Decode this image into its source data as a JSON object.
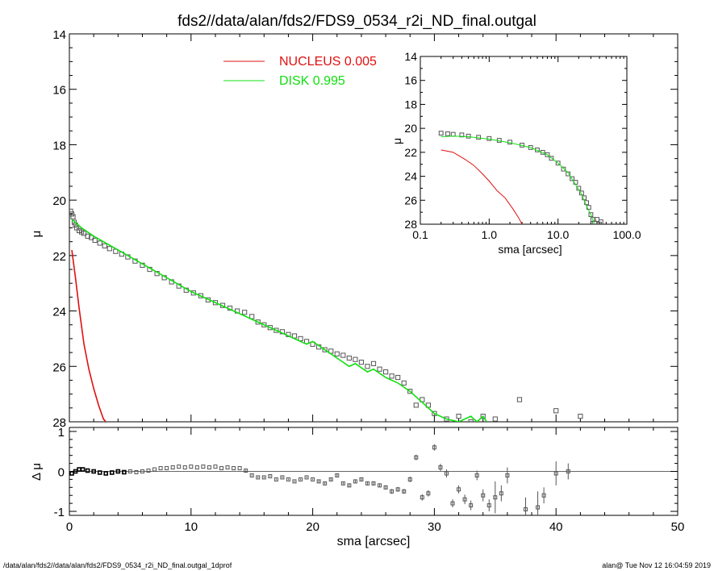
{
  "title": "fds2//data/alan/fds2/FDS9_0534_r2i_ND_final.outgal",
  "footer_left": "/data/alan/fds2//data/alan/fds2/FDS9_0534_r2i_ND_final.outgal_1dprof",
  "footer_right": "alan@  Tue Nov 12 16:04:59 2019",
  "colors": {
    "nucleus": "#e01010",
    "disk": "#10e010",
    "data": "#555555",
    "axes": "#000000"
  },
  "legend": [
    {
      "label": "NUCLEUS",
      "value": "0.005",
      "color": "#e01010"
    },
    {
      "label": "DISK",
      "value": "0.995",
      "color": "#10e010"
    }
  ],
  "chart_data": [
    {
      "type": "scatter",
      "panel": "main",
      "xlabel": "sma [arcsec]",
      "ylabel": "μ",
      "xlim": [
        0,
        50
      ],
      "ylim": [
        28,
        14
      ],
      "y_inverted": true,
      "xticks": [
        0,
        10,
        20,
        30,
        40,
        50
      ],
      "yticks": [
        14,
        16,
        18,
        20,
        22,
        24,
        26,
        28
      ],
      "series": [
        {
          "name": "NUCLEUS",
          "style": "line",
          "x": [
            0.2,
            0.5,
            0.8,
            1.2,
            1.6,
            2.0,
            2.4,
            2.8,
            3.0
          ],
          "y": [
            21.8,
            22.8,
            23.9,
            25.2,
            26.1,
            26.8,
            27.4,
            27.9,
            28.0
          ]
        },
        {
          "name": "DISK",
          "style": "line",
          "x": [
            0.2,
            1,
            2,
            4,
            6,
            8,
            10,
            12,
            14,
            16,
            18,
            19.5,
            20,
            21,
            22,
            23,
            23.5,
            24.5,
            25,
            26,
            27,
            28,
            29,
            30,
            31,
            32,
            33,
            33.5,
            34,
            34.3
          ],
          "y": [
            20.7,
            21.0,
            21.3,
            21.8,
            22.3,
            22.8,
            23.3,
            23.7,
            24.1,
            24.5,
            24.9,
            25.2,
            25.1,
            25.4,
            25.7,
            26.0,
            25.9,
            26.2,
            26.1,
            26.4,
            26.6,
            26.9,
            27.3,
            27.7,
            27.9,
            28.0,
            27.8,
            28.0,
            27.8,
            28.0
          ]
        },
        {
          "name": "",
          "style": "points",
          "x": [
            0.1,
            0.2,
            0.3,
            0.4,
            0.5,
            0.6,
            0.8,
            1.0,
            1.2,
            1.5,
            1.8,
            2.1,
            2.5,
            2.9,
            3.3,
            3.8,
            4.3,
            4.8,
            5.4,
            6.0,
            6.6,
            7.2,
            7.8,
            8.4,
            9.0,
            9.6,
            10.2,
            10.8,
            11.4,
            12.0,
            12.6,
            13.2,
            13.8,
            14.4,
            15.0,
            15.5,
            16.0,
            16.5,
            17.0,
            17.5,
            18.0,
            18.5,
            19.0,
            19.5,
            20.0,
            20.5,
            21.0,
            21.5,
            22.0,
            22.5,
            23.0,
            23.5,
            24.0,
            24.5,
            25.0,
            25.5,
            26.0,
            26.5,
            27.0,
            27.5,
            28.0,
            28.5,
            29.0,
            29.5,
            30.0,
            31.0,
            32.0,
            33.0,
            34.0,
            35.0,
            37.0,
            40.0,
            42.0
          ],
          "y": [
            20.4,
            20.5,
            20.6,
            20.8,
            20.9,
            21.0,
            21.1,
            21.15,
            21.2,
            21.3,
            21.35,
            21.45,
            21.55,
            21.65,
            21.75,
            21.85,
            21.95,
            22.05,
            22.2,
            22.35,
            22.5,
            22.65,
            22.8,
            22.95,
            23.1,
            23.25,
            23.35,
            23.45,
            23.6,
            23.7,
            23.8,
            23.9,
            24.0,
            24.05,
            24.2,
            24.4,
            24.5,
            24.6,
            24.7,
            24.75,
            24.85,
            24.9,
            25.0,
            25.1,
            25.2,
            25.3,
            25.4,
            25.45,
            25.55,
            25.6,
            25.7,
            25.75,
            25.85,
            26.0,
            25.9,
            26.1,
            26.2,
            26.35,
            26.4,
            26.6,
            26.9,
            27.4,
            27.2,
            27.4,
            27.7,
            27.9,
            27.8,
            28.0,
            27.8,
            27.9,
            27.2,
            27.6,
            27.8
          ]
        }
      ]
    },
    {
      "type": "scatter",
      "panel": "inset",
      "xlabel": "sma [arcsec]",
      "ylabel": "μ",
      "x_scale": "log",
      "xlim": [
        0.1,
        100.0
      ],
      "ylim": [
        28,
        14
      ],
      "y_inverted": true,
      "xtick_labels": [
        "0.1",
        "1.0",
        "10.0",
        "100.0"
      ],
      "yticks": [
        14,
        16,
        18,
        20,
        22,
        24,
        26,
        28
      ],
      "series": [
        {
          "name": "NUCLEUS",
          "style": "line",
          "x": [
            0.2,
            0.3,
            0.45,
            0.6,
            0.8,
            1.0,
            1.3,
            1.7,
            2.2,
            2.7,
            3.0
          ],
          "y": [
            21.8,
            22.0,
            22.6,
            23.1,
            23.8,
            24.4,
            25.2,
            25.8,
            26.7,
            27.5,
            28.0
          ]
        },
        {
          "name": "DISK",
          "style": "line",
          "x": [
            0.2,
            0.3,
            0.5,
            1.0,
            2.0,
            4.0,
            7.0,
            10.0,
            14.0,
            18.0,
            22.0,
            26.0,
            30.0,
            34.0
          ],
          "y": [
            20.7,
            20.65,
            20.7,
            20.9,
            21.2,
            21.6,
            22.2,
            22.9,
            23.7,
            24.7,
            25.5,
            26.5,
            27.2,
            28.0
          ]
        },
        {
          "name": "",
          "style": "points",
          "x": [
            0.2,
            0.25,
            0.3,
            0.4,
            0.5,
            0.7,
            1.0,
            1.4,
            2.0,
            3.0,
            4.0,
            5.0,
            6.0,
            7.0,
            8.0,
            10.0,
            12.0,
            14.0,
            16.0,
            18.0,
            20.0,
            22.0,
            24.0,
            26.0,
            28.0,
            30.0,
            32.0,
            34.0,
            37.0,
            40.0,
            42.0
          ],
          "y": [
            20.4,
            20.45,
            20.5,
            20.55,
            20.65,
            20.75,
            20.85,
            21.0,
            21.15,
            21.4,
            21.6,
            21.8,
            22.0,
            22.2,
            22.5,
            22.9,
            23.4,
            23.8,
            24.2,
            24.5,
            25.0,
            25.4,
            25.8,
            26.2,
            26.6,
            27.2,
            27.6,
            27.9,
            27.6,
            28.0,
            27.8
          ]
        }
      ]
    },
    {
      "type": "scatter",
      "panel": "residual",
      "xlabel": "sma [arcsec]",
      "ylabel": "Δ μ",
      "xlim": [
        0,
        50
      ],
      "ylim": [
        -1.1,
        1.1
      ],
      "xticks": [
        0,
        10,
        20,
        30,
        40,
        50
      ],
      "yticks": [
        -1,
        0,
        1
      ],
      "series": [
        {
          "name": "",
          "style": "errorbars",
          "x": [
            0.2,
            0.5,
            0.8,
            1.1,
            1.5,
            2.0,
            2.5,
            3.0,
            3.5,
            4.0,
            4.5,
            5.0,
            5.5,
            6.0,
            6.5,
            7.0,
            7.5,
            8.0,
            8.5,
            9.0,
            9.5,
            10.0,
            10.5,
            11.0,
            11.5,
            12.0,
            12.5,
            13.0,
            13.5,
            14.0,
            14.5,
            15.0,
            15.5,
            16.0,
            16.5,
            17.0,
            17.5,
            18.0,
            18.5,
            19.0,
            19.5,
            20.0,
            20.5,
            21.0,
            21.5,
            22.0,
            22.5,
            23.0,
            23.5,
            24.0,
            24.5,
            25.0,
            25.5,
            26.0,
            26.5,
            27.0,
            27.5,
            28.0,
            28.5,
            29.0,
            29.5,
            30.0,
            30.5,
            31.0,
            31.5,
            32.0,
            32.5,
            33.0,
            33.5,
            34.0,
            34.5,
            35.0,
            35.5,
            36.0,
            37.5,
            38.5,
            39.0,
            40.0,
            41.0
          ],
          "y": [
            -0.05,
            0.0,
            0.05,
            0.05,
            0.02,
            0.0,
            -0.03,
            -0.05,
            -0.03,
            0.0,
            -0.02,
            0.0,
            -0.02,
            0.0,
            0.02,
            0.05,
            0.08,
            0.08,
            0.1,
            0.12,
            0.1,
            0.12,
            0.1,
            0.12,
            0.1,
            0.12,
            0.08,
            0.1,
            0.08,
            0.08,
            0.02,
            -0.1,
            -0.15,
            -0.15,
            -0.12,
            -0.2,
            -0.15,
            -0.2,
            -0.25,
            -0.2,
            -0.15,
            -0.2,
            -0.25,
            -0.3,
            -0.2,
            -0.1,
            -0.3,
            -0.35,
            -0.25,
            -0.2,
            -0.3,
            -0.3,
            -0.35,
            -0.4,
            -0.5,
            -0.45,
            -0.5,
            -0.2,
            0.35,
            -0.65,
            -0.55,
            0.6,
            0.1,
            -0.05,
            -0.8,
            -0.45,
            -0.7,
            -0.85,
            -0.1,
            -0.6,
            -0.85,
            -0.65,
            -0.55,
            -0.1,
            -0.95,
            -0.9,
            -0.6,
            -0.05,
            0.0
          ],
          "err": [
            0.01,
            0.01,
            0.01,
            0.01,
            0.01,
            0.01,
            0.01,
            0.01,
            0.01,
            0.01,
            0.01,
            0.01,
            0.01,
            0.01,
            0.01,
            0.01,
            0.01,
            0.01,
            0.01,
            0.01,
            0.01,
            0.01,
            0.01,
            0.01,
            0.01,
            0.01,
            0.01,
            0.01,
            0.01,
            0.01,
            0.02,
            0.02,
            0.02,
            0.02,
            0.02,
            0.02,
            0.02,
            0.02,
            0.02,
            0.02,
            0.02,
            0.02,
            0.03,
            0.03,
            0.03,
            0.03,
            0.03,
            0.04,
            0.04,
            0.04,
            0.05,
            0.05,
            0.05,
            0.05,
            0.06,
            0.06,
            0.06,
            0.07,
            0.07,
            0.08,
            0.08,
            0.08,
            0.09,
            0.1,
            0.1,
            0.1,
            0.12,
            0.12,
            0.12,
            0.15,
            0.15,
            0.4,
            0.2,
            0.2,
            0.3,
            0.4,
            0.2,
            0.3,
            0.2
          ]
        }
      ]
    }
  ]
}
